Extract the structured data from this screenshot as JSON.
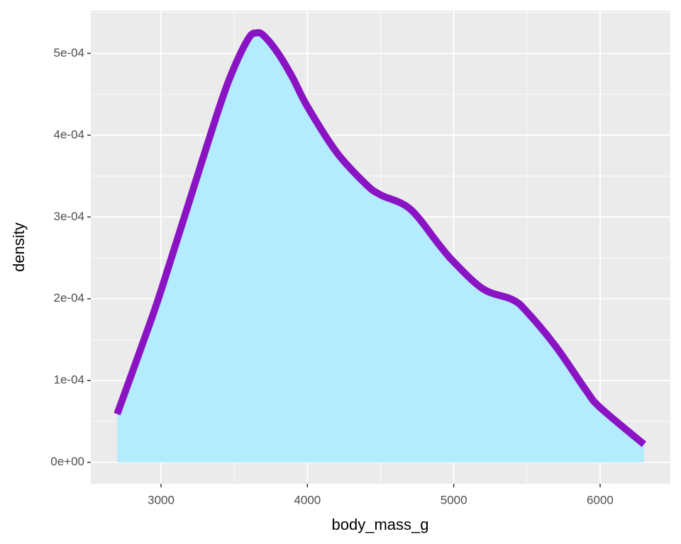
{
  "chart_data": {
    "type": "area",
    "x_label": "body_mass_g",
    "y_label": "density",
    "x": [
      2700,
      2900,
      3000,
      3200,
      3400,
      3500,
      3600,
      3650,
      3700,
      3800,
      3900,
      4000,
      4200,
      4400,
      4500,
      4700,
      4900,
      5000,
      5200,
      5400,
      5500,
      5700,
      5900,
      6000,
      6300
    ],
    "values": [
      5.9e-05,
      0.000158,
      0.00021,
      0.000323,
      0.000435,
      0.000483,
      0.000519,
      0.000525,
      0.000522,
      0.0005,
      0.00047,
      0.000435,
      0.000379,
      0.00034,
      0.000327,
      0.00031,
      0.000266,
      0.000245,
      0.000212,
      0.000199,
      0.000184,
      0.000141,
      8.9e-05,
      6.7e-05,
      2.2e-05
    ],
    "fill": "#b3ecfd",
    "color": "#8a14c4",
    "xlim": [
      2520,
      6480
    ],
    "ylim": [
      -2.63e-05,
      0.0005523
    ],
    "xticks": [
      3000,
      4000,
      5000,
      6000
    ],
    "yticks": [
      {
        "value": 0,
        "label": "0e+00"
      },
      {
        "value": 0.0001,
        "label": "1e-04"
      },
      {
        "value": 0.0002,
        "label": "2e-04"
      },
      {
        "value": 0.0003,
        "label": "3e-04"
      },
      {
        "value": 0.0004,
        "label": "4e-04"
      },
      {
        "value": 0.0005,
        "label": "5e-04"
      }
    ],
    "grid": true
  }
}
